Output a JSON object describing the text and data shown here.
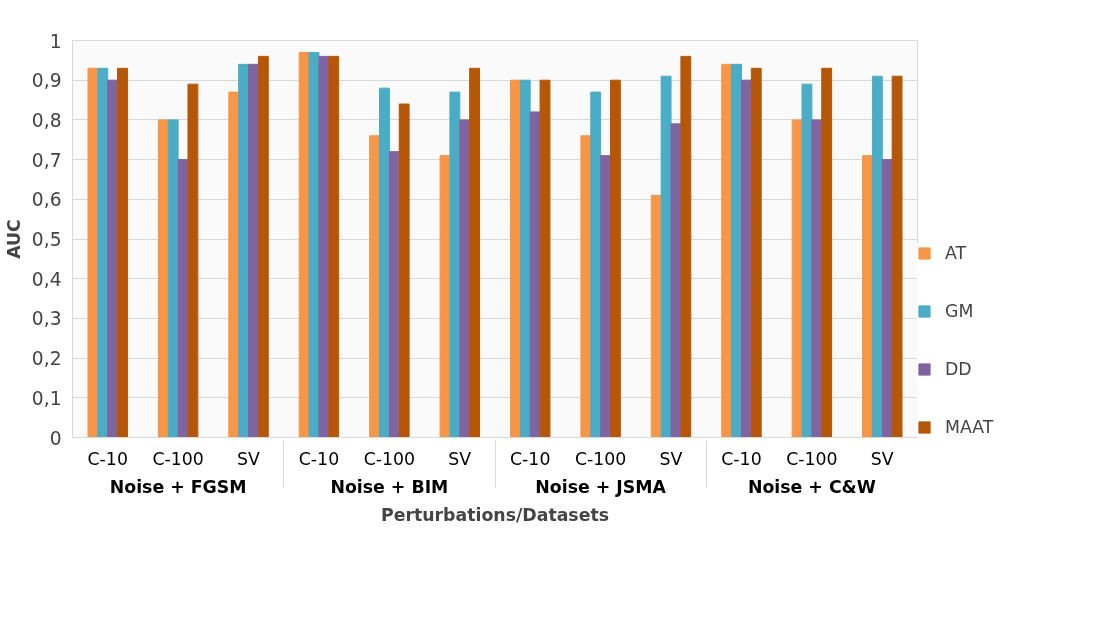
{
  "chart_data": {
    "type": "bar",
    "xlabel": "Perturbations/Datasets",
    "ylabel": "AUC",
    "categories": [
      "C-10",
      "C-100",
      "SV",
      "C-10",
      "C-100",
      "SV",
      "C-10",
      "C-100",
      "SV",
      "C-10",
      "C-100",
      "SV"
    ],
    "annotations": [
      "Noise + FGSM",
      "Noise + BIM",
      "Noise + JSMA",
      "Noise + C&W"
    ],
    "series": [
      {
        "name": "AT",
        "color": "#f79646",
        "values": [
          0.93,
          0.8,
          0.87,
          0.97,
          0.76,
          0.71,
          0.9,
          0.76,
          0.61,
          0.94,
          0.8,
          0.71
        ]
      },
      {
        "name": "GM",
        "color": "#4bacc6",
        "values": [
          0.93,
          0.8,
          0.94,
          0.97,
          0.88,
          0.87,
          0.9,
          0.87,
          0.91,
          0.94,
          0.89,
          0.91
        ]
      },
      {
        "name": "DD",
        "color": "#8064a2",
        "values": [
          0.9,
          0.7,
          0.94,
          0.96,
          0.72,
          0.8,
          0.82,
          0.71,
          0.79,
          0.9,
          0.8,
          0.7
        ]
      },
      {
        "name": "MAAT",
        "color": "#b65708",
        "values": [
          0.93,
          0.89,
          0.96,
          0.96,
          0.84,
          0.93,
          0.9,
          0.9,
          0.96,
          0.93,
          0.93,
          0.91
        ]
      }
    ],
    "ylim": [
      0,
      1
    ],
    "yticks": [
      0,
      {
        "value": 0.1,
        "label": "0,1"
      },
      {
        "value": 0.2,
        "label": "0,2"
      },
      {
        "value": 0.3,
        "label": "0,3"
      },
      {
        "value": 0.4,
        "label": "0,4"
      },
      {
        "value": 0.5,
        "label": "0,5"
      },
      {
        "value": 0.6,
        "label": "0,6"
      },
      {
        "value": 0.7,
        "label": "0,7"
      },
      {
        "value": 0.8,
        "label": "0,8"
      },
      {
        "value": 0.9,
        "label": "0,9"
      },
      1
    ],
    "grid": "y",
    "legend": "right"
  }
}
